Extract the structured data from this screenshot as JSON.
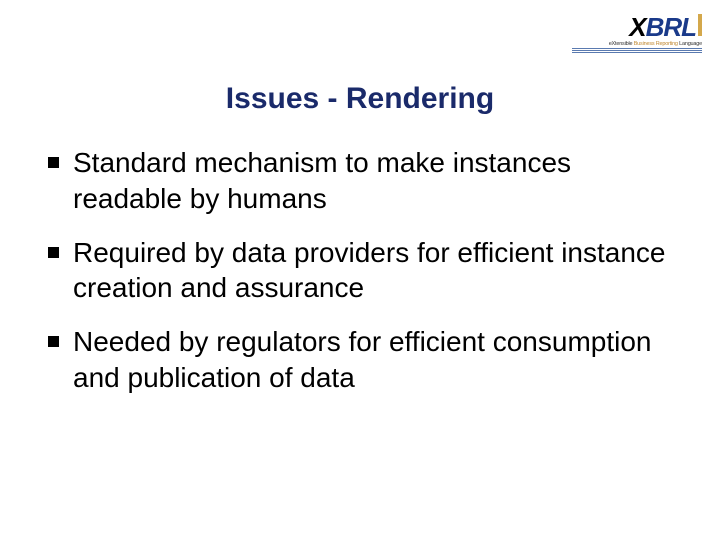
{
  "logo": {
    "x": "X",
    "brl": "BRL",
    "tagline_prefix": "eXtensible ",
    "tagline_highlight": "Business Reporting",
    "tagline_suffix": " Language"
  },
  "title": "Issues - Rendering",
  "bullets": [
    "Standard mechanism to make instances readable by humans",
    "Required by data providers for efficient instance creation and assurance",
    "Needed by regulators for efficient consumption and publication of data"
  ],
  "colors": {
    "title": "#1a2a6a",
    "body_text": "#000000",
    "background": "#ffffff",
    "logo_brl": "#1a3a8a",
    "logo_accent": "#d4a84b"
  },
  "typography": {
    "title_fontsize": 30,
    "body_fontsize": 28,
    "font_family": "Arial"
  }
}
